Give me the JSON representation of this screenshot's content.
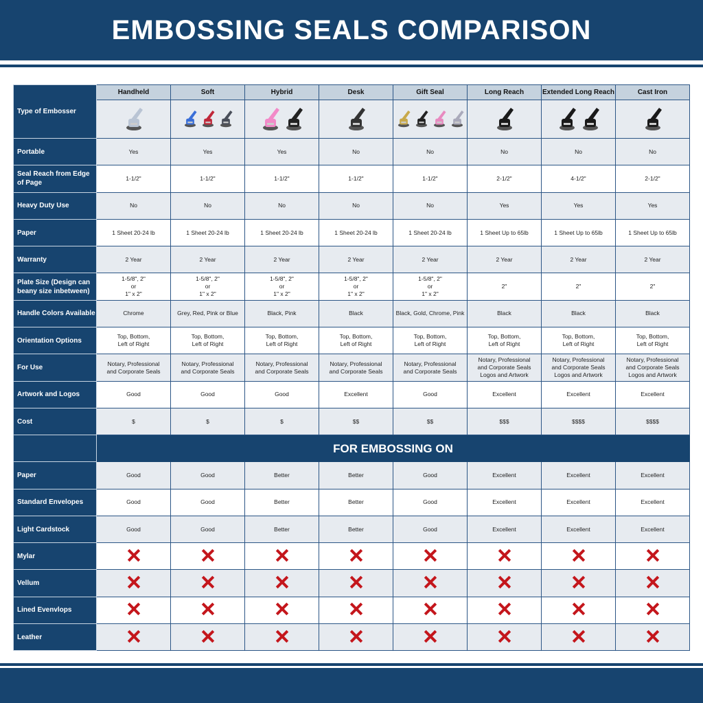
{
  "title": "EMBOSSING SEALS COMPARISON",
  "corner_label": "Type of Embosser",
  "columns": [
    "Handheld",
    "Soft",
    "Hybrid",
    "Desk",
    "Gift Seal",
    "Long Reach",
    "Extended Long Reach",
    "Cast Iron"
  ],
  "product_images": [
    [
      "#b9c4d4"
    ],
    [
      "#3a6fd8",
      "#c0283a",
      "#4a4f5a"
    ],
    [
      "#f28ac8",
      "#222"
    ],
    [
      "#333"
    ],
    [
      "#c8a94a",
      "#222",
      "#e88ac0",
      "#aab"
    ],
    [
      "#1a1a1a"
    ],
    [
      "#1a1a1a",
      "#1a1a1a"
    ],
    [
      "#1a1a1a"
    ]
  ],
  "rows": [
    {
      "label": "Portable",
      "values": [
        "Yes",
        "Yes",
        "Yes",
        "No",
        "No",
        "No",
        "No",
        "No"
      ]
    },
    {
      "label": "Seal Reach from Edge of Page",
      "values": [
        "1-1/2\"",
        "1-1/2\"",
        "1-1/2\"",
        "1-1/2\"",
        "1-1/2\"",
        "2-1/2\"",
        "4-1/2\"",
        "2-1/2\""
      ]
    },
    {
      "label": "Heavy Duty Use",
      "values": [
        "No",
        "No",
        "No",
        "No",
        "No",
        "Yes",
        "Yes",
        "Yes"
      ]
    },
    {
      "label": "Paper",
      "values": [
        "1 Sheet 20-24 lb",
        "1 Sheet 20-24 lb",
        "1 Sheet 20-24 lb",
        "1 Sheet 20-24 lb",
        "1 Sheet 20-24 lb",
        "1 Sheet Up to 65lb",
        "1 Sheet Up to 65lb",
        "1 Sheet Up to 65lb"
      ]
    },
    {
      "label": "Warranty",
      "values": [
        "2 Year",
        "2 Year",
        "2 Year",
        "2 Year",
        "2 Year",
        "2 Year",
        "2 Year",
        "2 Year"
      ]
    },
    {
      "label": "Plate Size (Design can beany size inbetween)",
      "values": [
        "1-5/8\", 2\"\nor\n1\" x 2\"",
        "1-5/8\", 2\"\nor\n1\" x 2\"",
        "1-5/8\", 2\"\nor\n1\" x 2\"",
        "1-5/8\", 2\"\nor\n1\" x 2\"",
        "1-5/8\", 2\"\nor\n1\" x 2\"",
        "2\"",
        "2\"",
        "2\""
      ]
    },
    {
      "label": "Handle Colors Available",
      "values": [
        "Chrome",
        "Grey, Red, Pink or Blue",
        "Black, Pink",
        "Black",
        "Black, Gold, Chrome, Pink",
        "Black",
        "Black",
        "Black"
      ]
    },
    {
      "label": "Orientation Options",
      "values": [
        "Top, Bottom,\nLeft of Right",
        "Top, Bottom,\nLeft of Right",
        "Top, Bottom,\nLeft of Right",
        "Top, Bottom,\nLeft of Right",
        "Top, Bottom,\nLeft of Right",
        "Top, Bottom,\nLeft of Right",
        "Top, Bottom,\nLeft of Right",
        "Top, Bottom,\nLeft of Right"
      ]
    },
    {
      "label": "For Use",
      "values": [
        "Notary, Professional\nand Corporate Seals",
        "Notary, Professional\nand Corporate Seals",
        "Notary, Professional\nand Corporate Seals",
        "Notary, Professional\nand Corporate Seals",
        "Notary, Professional\nand Corporate Seals",
        "Notary, Professional\nand Corporate Seals\nLogos and Artwork",
        "Notary, Professional\nand Corporate Seals\nLogos and Artwork",
        "Notary, Professional\nand Corporate Seals\nLogos and Artwork"
      ]
    },
    {
      "label": "Artwork and Logos",
      "values": [
        "Good",
        "Good",
        "Good",
        "Excellent",
        "Good",
        "Excellent",
        "Excellent",
        "Excellent"
      ]
    },
    {
      "label": "Cost",
      "values": [
        "$",
        "$",
        "$",
        "$$",
        "$$",
        "$$$",
        "$$$$",
        "$$$$"
      ]
    }
  ],
  "section_title": "FOR EMBOSSING ON",
  "embossing_rows": [
    {
      "label": "Paper",
      "values": [
        "Good",
        "Good",
        "Better",
        "Better",
        "Good",
        "Excellent",
        "Excellent",
        "Excellent"
      ]
    },
    {
      "label": "Standard Envelopes",
      "values": [
        "Good",
        "Good",
        "Better",
        "Better",
        "Good",
        "Excellent",
        "Excellent",
        "Excellent"
      ]
    },
    {
      "label": "Light Cardstock",
      "values": [
        "Good",
        "Good",
        "Better",
        "Better",
        "Good",
        "Excellent",
        "Excellent",
        "Excellent"
      ]
    },
    {
      "label": "Mylar",
      "values": [
        "x-icon",
        "x-icon",
        "x-icon",
        "x-icon",
        "x-icon",
        "x-icon",
        "x-icon",
        "x-icon"
      ]
    },
    {
      "label": "Vellum",
      "values": [
        "x-icon",
        "x-icon",
        "x-icon",
        "x-icon",
        "x-icon",
        "x-icon",
        "x-icon",
        "x-icon"
      ]
    },
    {
      "label": "Lined Evenvlops",
      "values": [
        "x-icon",
        "x-icon",
        "x-icon",
        "x-icon",
        "x-icon",
        "x-icon",
        "x-icon",
        "x-icon"
      ]
    },
    {
      "label": "Leather",
      "values": [
        "x-icon",
        "x-icon",
        "x-icon",
        "x-icon",
        "x-icon",
        "x-icon",
        "x-icon",
        "x-icon"
      ]
    }
  ],
  "colors": {
    "navy": "#17446f",
    "light_row": "#e7ebf0",
    "header_cell": "#c5d2de",
    "x_red": "#c4161c"
  }
}
